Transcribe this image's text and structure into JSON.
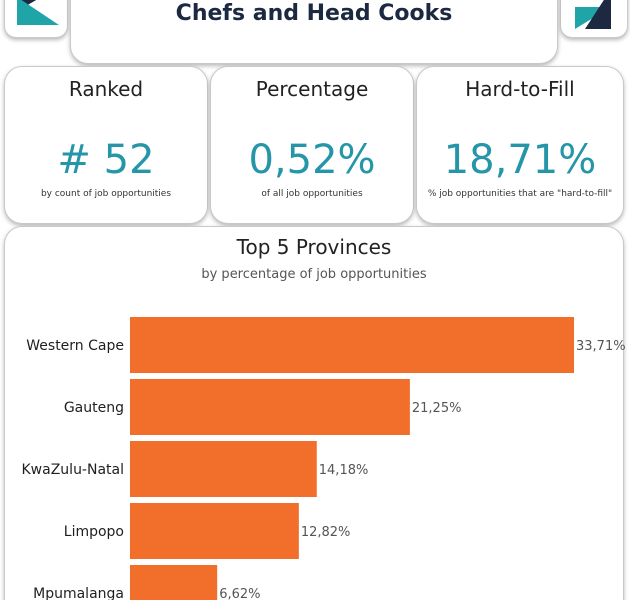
{
  "header": {
    "title": "Chefs and Head Cooks"
  },
  "logos": {
    "left_icon": "brand-logo-icon",
    "right_icon": "brand-logo-icon",
    "accent": "#1fa5a8",
    "dark": "#1c2940"
  },
  "kpis": [
    {
      "label": "Ranked",
      "value": "# 52",
      "sub": "by count of job opportunities"
    },
    {
      "label": "Percentage",
      "value": "0,52%",
      "sub": "of all job opportunities"
    },
    {
      "label": "Hard-to-Fill",
      "value": "18,71%",
      "sub": "% job opportunities that are \"hard-to-fill\""
    }
  ],
  "colors": {
    "bar": "#f26e2b",
    "kpi_value": "#2595a8",
    "title": "#1c2940"
  },
  "chart_data": {
    "type": "bar",
    "orientation": "horizontal",
    "title": "Top 5 Provinces",
    "subtitle": "by percentage of job opportunities",
    "categories": [
      "Western Cape",
      "Gauteng",
      "KwaZulu-Natal",
      "Limpopo",
      "Mpumalanga"
    ],
    "values": [
      33.71,
      21.25,
      14.18,
      12.82,
      6.62
    ],
    "data_labels": [
      "33,71%",
      "21,25%",
      "14,18%",
      "12,82%",
      "6,62%"
    ],
    "xlim": [
      0,
      33.71
    ],
    "grid": false,
    "legend": "none"
  }
}
